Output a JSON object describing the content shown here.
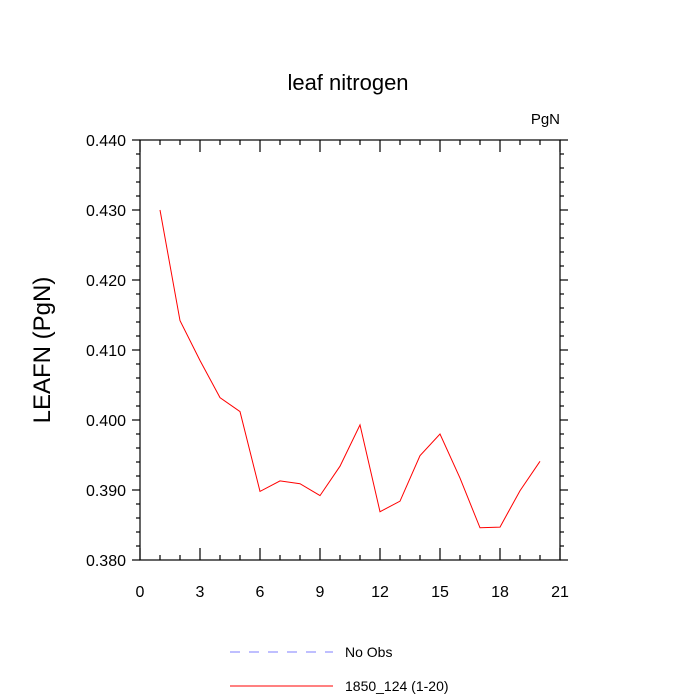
{
  "chart_data": {
    "type": "line",
    "title": "leaf nitrogen",
    "units": "PgN",
    "ylabel": "LEAFN  (PgN)",
    "xlabel": "",
    "xlim": [
      0,
      21
    ],
    "ylim": [
      0.38,
      0.44
    ],
    "x_ticks": [
      0,
      3,
      6,
      9,
      12,
      15,
      18,
      21
    ],
    "y_ticks": [
      0.38,
      0.39,
      0.4,
      0.41,
      0.42,
      0.43,
      0.44
    ],
    "y_tick_labels": [
      "0.380",
      "0.390",
      "0.400",
      "0.410",
      "0.420",
      "0.430",
      "0.440"
    ],
    "series": [
      {
        "name": "1850_124 (1-20)",
        "color": "#ff0000",
        "x": [
          1,
          2,
          3,
          4,
          5,
          6,
          7,
          8,
          9,
          10,
          11,
          12,
          13,
          14,
          15,
          16,
          17,
          18,
          19,
          20
        ],
        "values": [
          0.43,
          0.4142,
          0.4085,
          0.4032,
          0.4012,
          0.3898,
          0.3913,
          0.3909,
          0.3892,
          0.3934,
          0.3993,
          0.3869,
          0.3884,
          0.3949,
          0.398,
          0.3917,
          0.3846,
          0.3847,
          0.3899,
          0.3941
        ]
      }
    ],
    "legend": {
      "placement": "bottom",
      "entries": [
        {
          "label": "No Obs",
          "color": "#7f7fff",
          "style": "dashed"
        },
        {
          "label": "1850_124 (1-20)",
          "color": "#ff0000",
          "style": "solid"
        }
      ]
    },
    "grid": false
  }
}
